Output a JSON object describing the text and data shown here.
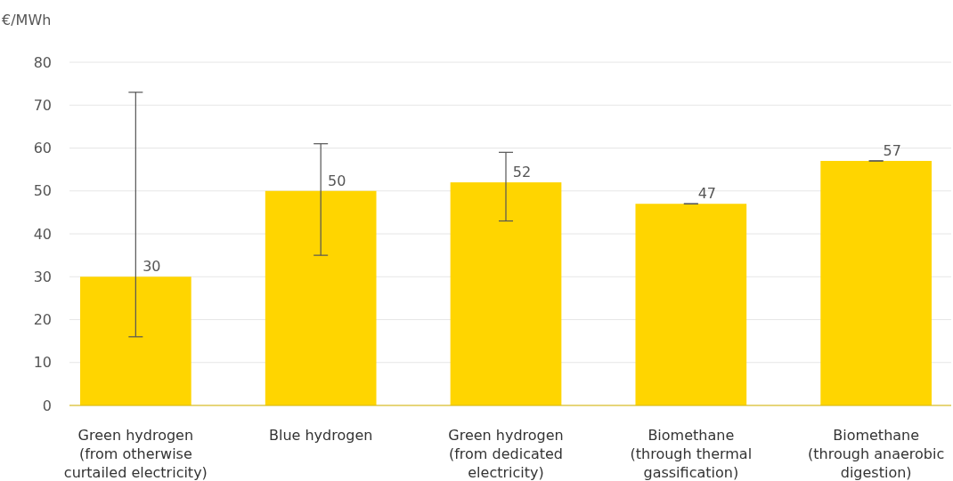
{
  "chart_data": {
    "type": "bar",
    "ylabel": "€/MWh",
    "categories": [
      "Green hydrogen\n(from otherwise\ncurtailed electricity)",
      "Blue hydrogen",
      "Green hydrogen\n(from dedicated\nelectricity)",
      "Biomethane\n(through thermal\ngassification)",
      "Biomethane\n(through anaerobic\ndigestion)"
    ],
    "values": [
      30,
      50,
      52,
      47,
      57
    ],
    "errors": [
      [
        16,
        73
      ],
      [
        35,
        61
      ],
      [
        43,
        59
      ],
      [
        47,
        47
      ],
      [
        57,
        57
      ]
    ],
    "color": "#ffd500",
    "data_labels": true,
    "ylim": [
      0,
      80
    ],
    "yticks": [
      0,
      10,
      20,
      30,
      40,
      50,
      60,
      70,
      80
    ],
    "grid": "y"
  }
}
